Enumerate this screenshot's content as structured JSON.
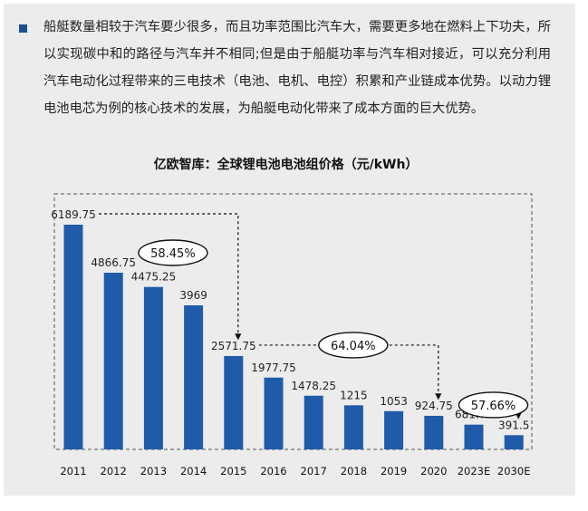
{
  "paragraph": "船艇数量相较于汽车要少很多，而且功率范围比汽车大，需要更多地在燃料上下功夫，所以实现碳中和的路径与汽车并不相同;但是由于船艇功率与汽车相对接近，可以充分利用汽车电动化过程带来的三电技术（电池、电机、电控）积累和产业链成本优势。以动力锂电池电芯为例的核心技术的发展，为船艇电动化带来了成本方面的巨大优势。",
  "colors": {
    "bar": "#1f5ba8",
    "panel": "#ececec",
    "bullet": "#1f4f8e"
  },
  "chart_data": {
    "type": "bar",
    "title": "亿欧智库：全球锂电池电池组价格（元/kWh）",
    "categories": [
      "2011",
      "2012",
      "2013",
      "2014",
      "2015",
      "2016",
      "2017",
      "2018",
      "2019",
      "2020",
      "2023E",
      "2030E"
    ],
    "values": [
      6189.75,
      4866.75,
      4475.25,
      3969,
      2571.75,
      1977.75,
      1478.25,
      1215,
      1053,
      924.75,
      681.75,
      391.5
    ],
    "value_labels": [
      "6189.75",
      "4866.75",
      "4475.25",
      "3969",
      "2571.75",
      "1977.75",
      "1478.25",
      "1215",
      "1053",
      "924.75",
      "681.75",
      "391.5"
    ],
    "ylim": [
      0,
      6500
    ],
    "annotations": [
      {
        "text": "58.45%",
        "from": "2011",
        "to": "2015"
      },
      {
        "text": "64.04%",
        "from": "2015",
        "to": "2020"
      },
      {
        "text": "57.66%",
        "from": "2020",
        "to": "2030E"
      }
    ],
    "grid": false
  }
}
